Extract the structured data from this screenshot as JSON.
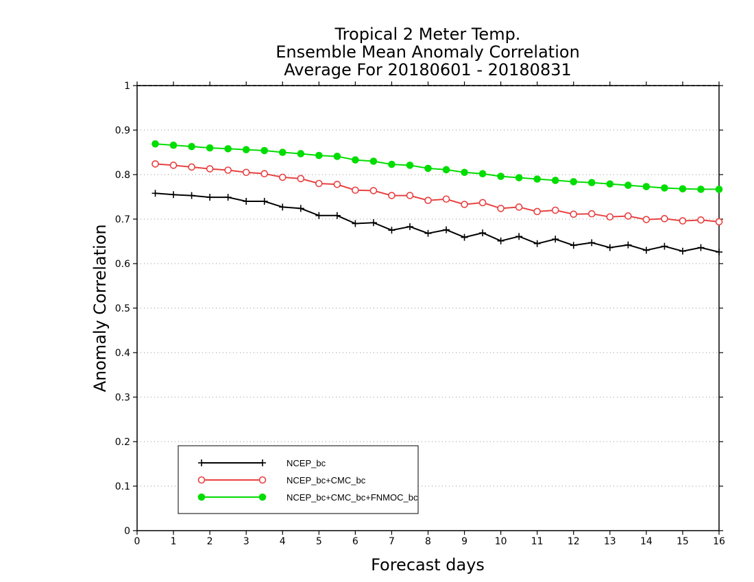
{
  "chart_data": {
    "type": "line",
    "title_lines": [
      "Tropical 2 Meter Temp.",
      "Ensemble Mean Anomaly Correlation",
      "Average For 20180601 - 20180831"
    ],
    "xlabel": "Forecast days",
    "ylabel": "Anomaly Correlation",
    "xlim": [
      0,
      16
    ],
    "ylim": [
      0,
      1
    ],
    "xticks": [
      "0",
      "1",
      "2",
      "3",
      "4",
      "5",
      "6",
      "7",
      "8",
      "9",
      "10",
      "11",
      "12",
      "13",
      "14",
      "15",
      "16"
    ],
    "yticks": [
      "0",
      "0.1",
      "0.2",
      "0.3",
      "0.4",
      "0.5",
      "0.6",
      "0.7",
      "0.8",
      "0.9",
      "1"
    ],
    "grid": "horizontal-dotted",
    "legend_position": "bottom-left",
    "x": [
      0.5,
      1,
      1.5,
      2,
      2.5,
      3,
      3.5,
      4,
      4.5,
      5,
      5.5,
      6,
      6.5,
      7,
      7.5,
      8,
      8.5,
      9,
      9.5,
      10,
      10.5,
      11,
      11.5,
      12,
      12.5,
      13,
      13.5,
      14,
      14.5,
      15,
      15.5,
      16
    ],
    "series": [
      {
        "name": "NCEP_bc",
        "color": "#000000",
        "marker": "plus",
        "values": [
          0.758,
          0.755,
          0.753,
          0.749,
          0.749,
          0.74,
          0.74,
          0.727,
          0.724,
          0.708,
          0.708,
          0.69,
          0.692,
          0.675,
          0.683,
          0.668,
          0.676,
          0.659,
          0.669,
          0.651,
          0.661,
          0.645,
          0.655,
          0.641,
          0.647,
          0.636,
          0.642,
          0.63,
          0.639,
          0.628,
          0.636,
          0.626
        ]
      },
      {
        "name": "NCEP_bc+CMC_bc",
        "color": "#e84040",
        "marker": "open-circle",
        "values": [
          0.824,
          0.821,
          0.817,
          0.813,
          0.81,
          0.805,
          0.802,
          0.794,
          0.791,
          0.78,
          0.778,
          0.765,
          0.764,
          0.753,
          0.753,
          0.742,
          0.745,
          0.733,
          0.737,
          0.724,
          0.727,
          0.717,
          0.72,
          0.711,
          0.712,
          0.705,
          0.707,
          0.699,
          0.701,
          0.696,
          0.698,
          0.694
        ]
      },
      {
        "name": "NCEP_bc+CMC_bc+FNMOC_bc",
        "color": "#00dd00",
        "marker": "filled-circle",
        "values": [
          0.869,
          0.866,
          0.863,
          0.86,
          0.858,
          0.856,
          0.854,
          0.85,
          0.847,
          0.843,
          0.841,
          0.833,
          0.83,
          0.823,
          0.821,
          0.814,
          0.811,
          0.805,
          0.802,
          0.796,
          0.793,
          0.79,
          0.787,
          0.784,
          0.782,
          0.779,
          0.776,
          0.773,
          0.77,
          0.768,
          0.767,
          0.767
        ]
      }
    ]
  }
}
